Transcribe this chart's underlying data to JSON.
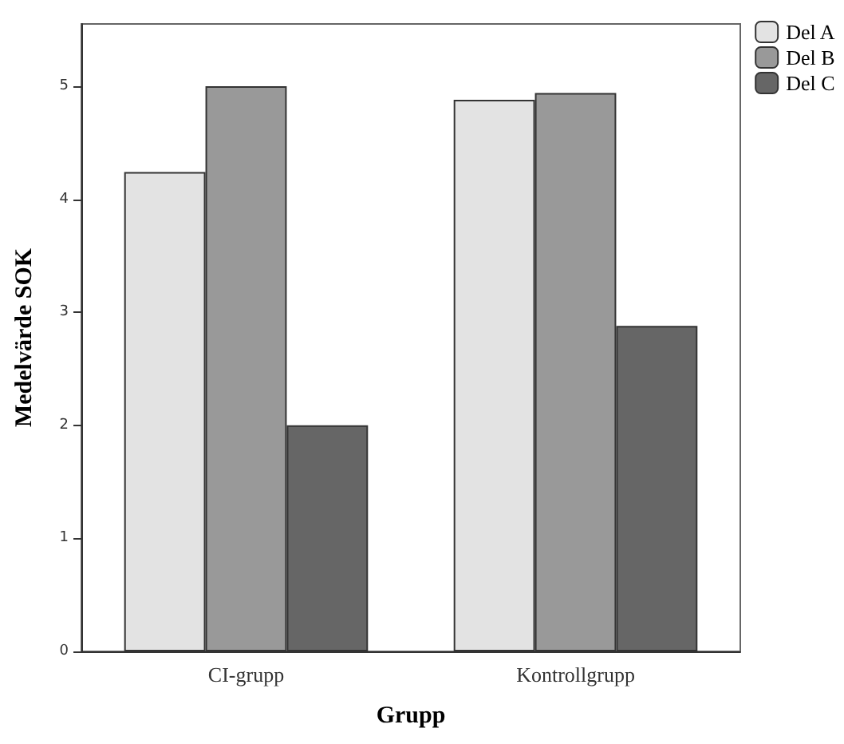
{
  "chart_data": {
    "type": "bar",
    "xlabel": "Grupp",
    "ylabel": "Medelvärde SOK",
    "categories": [
      "CI-grupp",
      "Kontrollgrupp"
    ],
    "series": [
      {
        "name": "Del A",
        "color": "#e3e3e3",
        "values": [
          4.24,
          4.88
        ]
      },
      {
        "name": "Del B",
        "color": "#999999",
        "values": [
          5.0,
          4.94
        ]
      },
      {
        "name": "Del C",
        "color": "#666666",
        "values": [
          2.0,
          2.88
        ]
      }
    ],
    "ylim": [
      0,
      5.55
    ],
    "yticks": [
      0,
      1,
      2,
      3,
      4,
      5
    ],
    "grid": false,
    "legend": "top right"
  }
}
